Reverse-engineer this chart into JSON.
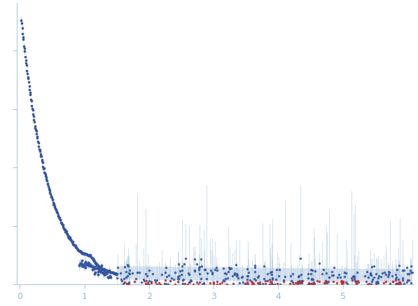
{
  "title": "",
  "xlabel": "",
  "ylabel": "",
  "xlim": [
    -0.05,
    6.1
  ],
  "background_color": "#ffffff",
  "dot_color_blue": "#3355a0",
  "dot_color_red": "#cc2222",
  "error_bar_color": "#b0cce0",
  "error_fill_color": "#ccdaea",
  "axis_color": "#aaccdd",
  "tick_color": "#aaccdd",
  "tick_label_color": "#99bbcc",
  "dot_size": 6,
  "red_dot_size": 6,
  "xticks": [
    0,
    1,
    2,
    3,
    4,
    5
  ]
}
